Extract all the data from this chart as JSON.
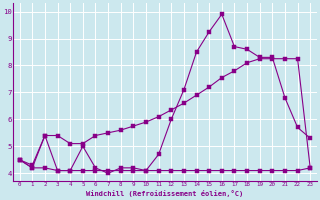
{
  "xlabel": "Windchill (Refroidissement éolien,°C)",
  "background_color": "#cce8ee",
  "grid_color": "#ffffff",
  "line_color": "#880088",
  "x_values": [
    0,
    1,
    2,
    3,
    4,
    5,
    6,
    7,
    8,
    9,
    10,
    11,
    12,
    13,
    14,
    15,
    16,
    17,
    18,
    19,
    20,
    21,
    22,
    23
  ],
  "line1": [
    4.5,
    4.2,
    5.4,
    4.1,
    4.1,
    5.0,
    4.2,
    4.0,
    4.2,
    4.2,
    4.1,
    4.7,
    6.0,
    7.1,
    8.5,
    9.25,
    9.9,
    8.7,
    8.6,
    8.3,
    8.3,
    6.8,
    5.7,
    5.3
  ],
  "line2": [
    4.5,
    4.3,
    5.4,
    5.4,
    5.1,
    5.1,
    5.4,
    5.5,
    5.6,
    5.75,
    5.9,
    6.1,
    6.35,
    6.6,
    6.9,
    7.2,
    7.55,
    7.8,
    8.1,
    8.25,
    8.25,
    8.25,
    8.25,
    4.2
  ],
  "line3": [
    4.5,
    4.2,
    4.2,
    4.1,
    4.1,
    4.1,
    4.1,
    4.1,
    4.1,
    4.1,
    4.1,
    4.1,
    4.1,
    4.1,
    4.1,
    4.1,
    4.1,
    4.1,
    4.1,
    4.1,
    4.1,
    4.1,
    4.1,
    4.2
  ],
  "ylim": [
    3.7,
    10.3
  ],
  "xlim": [
    -0.5,
    23.5
  ],
  "yticks": [
    4,
    5,
    6,
    7,
    8,
    9,
    10
  ],
  "xticks": [
    0,
    1,
    2,
    3,
    4,
    5,
    6,
    7,
    8,
    9,
    10,
    11,
    12,
    13,
    14,
    15,
    16,
    17,
    18,
    19,
    20,
    21,
    22,
    23
  ],
  "xlabel_fontsize": 5.0,
  "tick_fontsize_x": 4.2,
  "tick_fontsize_y": 5.2
}
